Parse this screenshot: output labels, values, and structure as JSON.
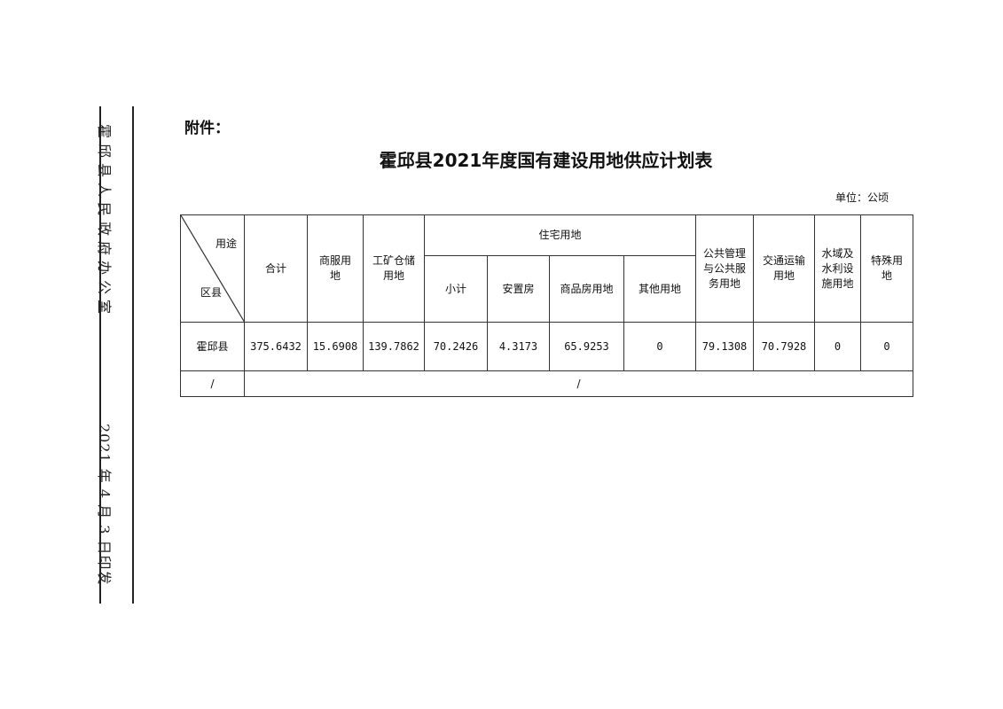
{
  "margin": {
    "issuer": "霍邱县人民政府办公室",
    "date": "2021 年 4 月 3 日印发"
  },
  "attachment_label": "附件：",
  "title": "霍邱县2021年度国有建设用地供应计划表",
  "unit": "单位：公顷",
  "table": {
    "corner_top": "用途",
    "corner_bottom": "区县",
    "headers": {
      "total": "合计",
      "commercial": "商服用地",
      "industrial": "工矿仓储用地",
      "residential": "住宅用地",
      "res_subtotal": "小计",
      "res_resettlement": "安置房",
      "res_commodity": "商品房用地",
      "res_other": "其他用地",
      "public": "公共管理与公共服务用地",
      "transport": "交通运输用地",
      "water": "水域及水利设施用地",
      "special": "特殊用地"
    },
    "rows": [
      {
        "district": "霍邱县",
        "values": [
          "375.6432",
          "15.6908",
          "139.7862",
          "70.2426",
          "4.3173",
          "65.9253",
          "0",
          "79.1308",
          "70.7928",
          "0",
          "0"
        ]
      }
    ],
    "blank_row": {
      "left": "/",
      "right": "/"
    }
  }
}
